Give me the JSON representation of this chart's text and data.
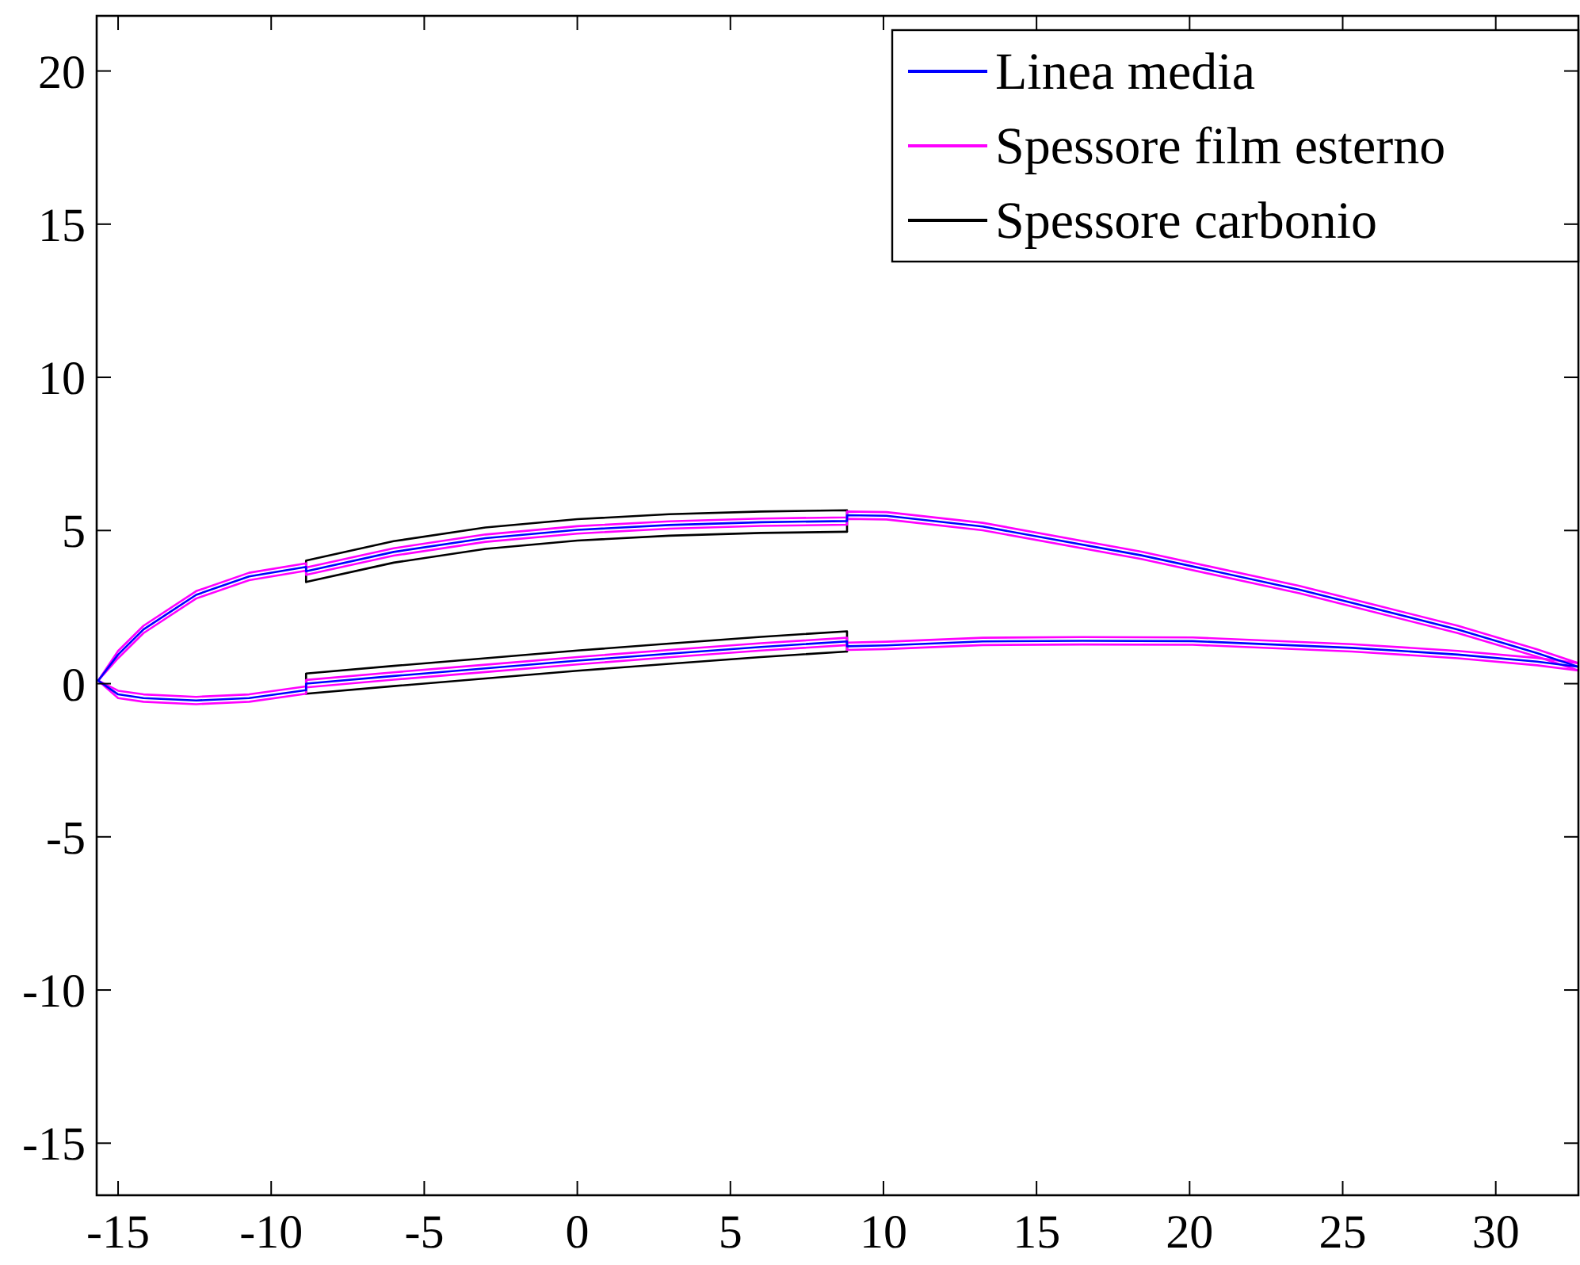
{
  "chart_data": {
    "type": "line",
    "xlim": [
      -15.7,
      32.7
    ],
    "ylim": [
      -16.7,
      21.8
    ],
    "xticks": [
      -15,
      -10,
      -5,
      0,
      5,
      10,
      15,
      20,
      25,
      30
    ],
    "yticks": [
      -15,
      -10,
      -5,
      0,
      5,
      10,
      15,
      20
    ],
    "legend": "top right",
    "series": [
      {
        "name": "Linea media",
        "color": "#0000ff",
        "x": [
          -15.65,
          -15.0,
          -14.17,
          -12.45,
          -10.72,
          -8.86,
          -8.86,
          -6,
          -3,
          0,
          3,
          6,
          8.81,
          8.81,
          10.1,
          13.24,
          18.42,
          23.59,
          28.76,
          31.35,
          32.7
        ],
        "values": [
          0.1,
          0.95,
          1.77,
          2.9,
          3.5,
          3.81,
          3.67,
          4.3,
          4.75,
          5.02,
          5.18,
          5.27,
          5.31,
          5.5,
          5.48,
          5.13,
          4.19,
          3.07,
          1.77,
          1.0,
          0.55
        ]
      },
      {
        "color": "#0000ff",
        "x": [
          -15.65,
          -15.0,
          -14.17,
          -12.45,
          -10.72,
          -8.86,
          -8.86,
          -6,
          -3,
          0,
          3,
          6,
          8.81,
          8.81,
          10.1,
          13.24,
          16.5,
          20.1,
          25.3,
          28.76,
          31.35,
          32.7
        ],
        "values": [
          0.1,
          -0.35,
          -0.47,
          -0.55,
          -0.47,
          -0.21,
          0.0,
          0.25,
          0.5,
          0.75,
          0.98,
          1.2,
          1.38,
          1.22,
          1.25,
          1.38,
          1.4,
          1.39,
          1.17,
          0.95,
          0.72,
          0.55
        ]
      },
      {
        "name": "Spessore film esterno",
        "color": "#ff00ff",
        "x": [
          -15.65,
          -15.0,
          -14.17,
          -12.45,
          -10.72,
          -8.86,
          -8.86,
          -6,
          -3,
          0,
          3,
          6,
          8.81,
          8.81,
          10.1,
          13.24,
          18.42,
          23.59,
          28.76,
          31.35,
          32.7
        ],
        "values": [
          0.1,
          1.07,
          1.89,
          3.02,
          3.62,
          3.93,
          3.79,
          4.42,
          4.87,
          5.14,
          5.3,
          5.39,
          5.43,
          5.62,
          5.6,
          5.25,
          4.31,
          3.19,
          1.89,
          1.12,
          0.67
        ]
      },
      {
        "color": "#ff00ff",
        "x": [
          -15.65,
          -15.0,
          -14.17,
          -12.45,
          -10.72,
          -8.86,
          -8.86,
          -6,
          -3,
          0,
          3,
          6,
          8.81,
          8.81,
          10.1,
          13.24,
          18.42,
          23.59,
          28.76,
          31.35,
          32.7
        ],
        "values": [
          0.1,
          0.83,
          1.65,
          2.78,
          3.38,
          3.69,
          3.55,
          4.18,
          4.63,
          4.9,
          5.06,
          5.15,
          5.19,
          5.38,
          5.36,
          5.01,
          4.07,
          2.95,
          1.65,
          0.88,
          0.43
        ]
      },
      {
        "color": "#ff00ff",
        "x": [
          -15.65,
          -15.0,
          -14.17,
          -12.45,
          -10.72,
          -8.86,
          -8.86,
          -6,
          -3,
          0,
          3,
          6,
          8.81,
          8.81,
          10.1,
          13.24,
          16.5,
          20.1,
          25.3,
          28.76,
          31.35,
          32.7
        ],
        "values": [
          0.1,
          -0.47,
          -0.59,
          -0.67,
          -0.59,
          -0.33,
          -0.12,
          0.13,
          0.38,
          0.63,
          0.86,
          1.08,
          1.26,
          1.1,
          1.13,
          1.26,
          1.28,
          1.27,
          1.05,
          0.83,
          0.6,
          0.43
        ]
      },
      {
        "color": "#ff00ff",
        "x": [
          -15.65,
          -15.0,
          -14.17,
          -12.45,
          -10.72,
          -8.86,
          -8.86,
          -6,
          -3,
          0,
          3,
          6,
          8.81,
          8.81,
          10.1,
          13.24,
          16.5,
          20.1,
          25.3,
          28.76,
          31.35,
          32.7
        ],
        "values": [
          0.1,
          -0.23,
          -0.35,
          -0.43,
          -0.35,
          -0.09,
          0.12,
          0.37,
          0.62,
          0.87,
          1.1,
          1.32,
          1.5,
          1.34,
          1.37,
          1.5,
          1.52,
          1.51,
          1.29,
          1.07,
          0.84,
          0.67
        ]
      },
      {
        "name": "Spessore carbonio",
        "color": "#000000",
        "x": [
          -8.86,
          -8.86,
          -6,
          -3,
          0,
          3,
          6,
          8.81,
          8.81
        ],
        "values": [
          3.32,
          4.02,
          4.65,
          5.1,
          5.37,
          5.53,
          5.62,
          5.66,
          4.96
        ]
      },
      {
        "color": "#000000",
        "x": [
          -8.86,
          -6,
          -3,
          0,
          3,
          6,
          8.81
        ],
        "values": [
          3.32,
          3.95,
          4.4,
          4.67,
          4.83,
          4.92,
          4.96
        ]
      },
      {
        "color": "#000000",
        "x": [
          -8.86,
          -8.86,
          -6,
          -3,
          0,
          3,
          6,
          8.81,
          8.81
        ],
        "values": [
          -0.33,
          0.33,
          0.58,
          0.83,
          1.08,
          1.31,
          1.53,
          1.71,
          1.05
        ]
      },
      {
        "color": "#000000",
        "x": [
          -8.86,
          -6,
          -3,
          0,
          3,
          6,
          8.81
        ],
        "values": [
          -0.33,
          -0.08,
          0.17,
          0.42,
          0.65,
          0.87,
          1.05
        ]
      }
    ]
  }
}
